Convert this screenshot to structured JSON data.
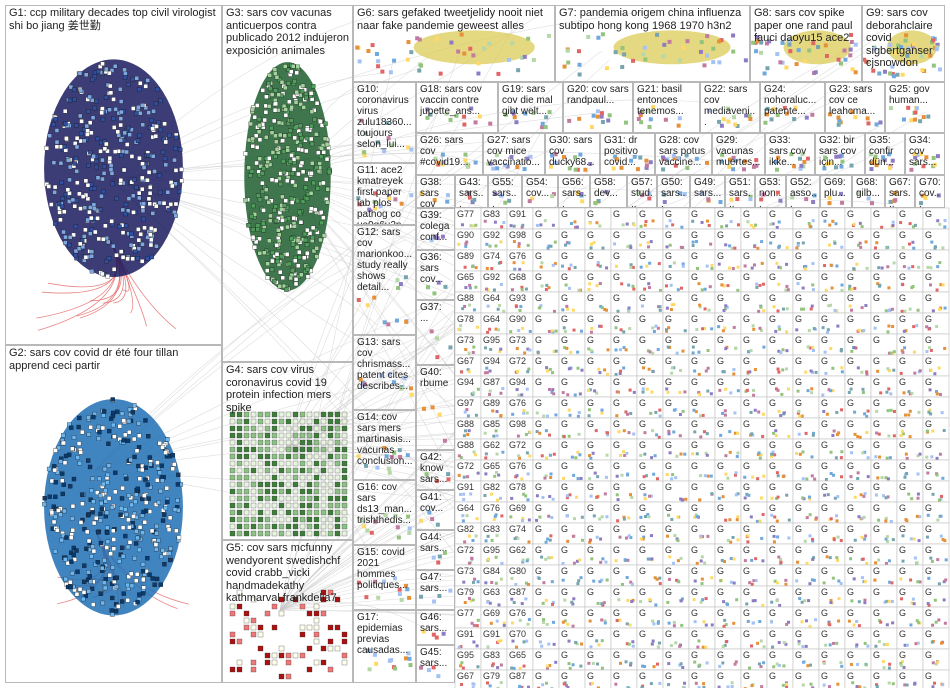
{
  "groups": [
    {
      "label": "G1: ccp military decades top civil virologist shi bo jiang 姜世勤"
    },
    {
      "label": "G2: sars cov covid dr été four tillan apprend ceci partir"
    },
    {
      "label": "G3: sars cov vacunas anticuerpos contra publicado 2012 indujeron exposición animales"
    },
    {
      "label": "G4: sars cov virus coronavirus covid 19 protein infection mers spike"
    },
    {
      "label": "G5: cov sars mcfunny wendyorent swedishchf covid crabb_vicki handmadekathy kathmarval frankdelia7"
    },
    {
      "label": "G6: sars gefaked tweetjelidy nooit niet naar fake pandemie geweest alles"
    },
    {
      "label": "G7: pandemia origem china influenza subtipo hong kong 1968 1970 h3n2"
    },
    {
      "label": "G8: sars cov spike paper one rand paul fauci daoyu15 ace2"
    },
    {
      "label": "G9: sars cov deborahclaire covid sigbertganser cjsnowdon"
    },
    {
      "label": "G10: coronavirus virus zulu18360... toujours selon_lui..."
    },
    {
      "label": "G18: sars cov vaccin contre jupette_ans..."
    },
    {
      "label": "G19: sars cov die mal gibt welt..."
    },
    {
      "label": "G20: cov sars randpaul..."
    },
    {
      "label": "G21: basil entonces tenemos..."
    },
    {
      "label": "G22: sars cov mediaveni..."
    },
    {
      "label": "G24: nohoraluc... patente..."
    },
    {
      "label": "G23: sars cov ce leahcma..."
    },
    {
      "label": "G25: gov human..."
    },
    {
      "label": "G26: sars cov #covid19..."
    },
    {
      "label": "G27: sars cov mice vaccinatio..."
    },
    {
      "label": "G30: sars cov ducky68..."
    },
    {
      "label": "G31: dr positivo covid..."
    },
    {
      "label": "G28: cov sars potus vaccine..."
    },
    {
      "label": "G29: vacunas muertes..."
    },
    {
      "label": "G33: sars cov ikke..."
    },
    {
      "label": "G32: bir sars cov için..."
    },
    {
      "label": "G35: confir dün..."
    },
    {
      "label": "G34: cov sars..."
    },
    {
      "label": "G11: ace2 kmatreyek first paper lab plos pathog co uo9q6u2n..."
    },
    {
      "label": "G12: sars cov marionkoo... study really shows detail..."
    },
    {
      "label": "G13: sars cov chrismass... patent cites describes..."
    },
    {
      "label": "G14: cov sars mers martinasis... vacunas conclusion..."
    },
    {
      "label": "G16: cov sars ds13_man... trishthedis..."
    },
    {
      "label": "G15: covid 2021 hommes politiques..."
    },
    {
      "label": "G17: epidemias previas causadas..."
    },
    {
      "label": "G38: sars cov"
    },
    {
      "label": "G43: sars..."
    },
    {
      "label": "G55: sars..."
    },
    {
      "label": "G54: cov..."
    },
    {
      "label": "G56: sars..."
    },
    {
      "label": "G58: dev..."
    },
    {
      "label": "G57: stud..."
    },
    {
      "label": "G50: sars..."
    },
    {
      "label": "G49: sars..."
    },
    {
      "label": "G51: sars..."
    },
    {
      "label": "G53: non..."
    },
    {
      "label": "G52: asso..."
    },
    {
      "label": "G69: plu..."
    },
    {
      "label": "G68: gilb..."
    },
    {
      "label": "G67: sars..."
    },
    {
      "label": "G70: cov..."
    },
    {
      "label": "G39: colega conf..."
    },
    {
      "label": "G36: sars cov..."
    },
    {
      "label": "G37: ..."
    },
    {
      "label": "G40: rbume"
    },
    {
      "label": "G42: know sars..."
    },
    {
      "label": "G41: cov..."
    },
    {
      "label": "G44: sars..."
    },
    {
      "label": "G47: sars..."
    },
    {
      "label": "G46: sars..."
    },
    {
      "label": "G45: sars..."
    }
  ]
}
